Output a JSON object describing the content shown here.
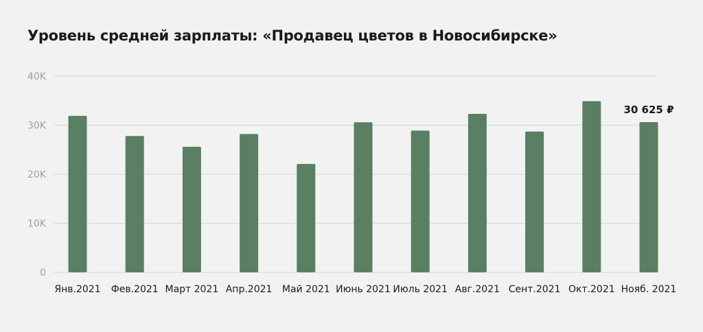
{
  "title": "Уровень средней зарплаты: «Продавец цветов в Новосибирске»",
  "colors": {
    "background": "#f2f2f2",
    "bar": "#5a7f62",
    "grid": "#d4d4d4",
    "tick_label": "#a0a0a0",
    "category_label": "#1a1a1a"
  },
  "chart_data": {
    "type": "bar",
    "title": "Уровень средней зарплаты: «Продавец цветов в Новосибирске»",
    "xlabel": "",
    "ylabel": "",
    "categories": [
      "Янв.2021",
      "Фев.2021",
      "Март 2021",
      "Апр.2021",
      "Май 2021",
      "Июнь 2021",
      "Июль 2021",
      "Авг.2021",
      "Сент.2021",
      "Окт.2021",
      "Нояб. 2021"
    ],
    "values": [
      31900,
      27800,
      25600,
      28200,
      22100,
      30600,
      28900,
      32300,
      28700,
      34900,
      30625
    ],
    "ylim": [
      0,
      40000
    ],
    "yticks": [
      0,
      10000,
      20000,
      30000,
      40000
    ],
    "ytick_labels": [
      "0",
      "10K",
      "20K",
      "30K",
      "40K"
    ],
    "grid": true,
    "legend": "none",
    "annotation": {
      "category_index": 10,
      "text": "30 625 ₽"
    }
  }
}
